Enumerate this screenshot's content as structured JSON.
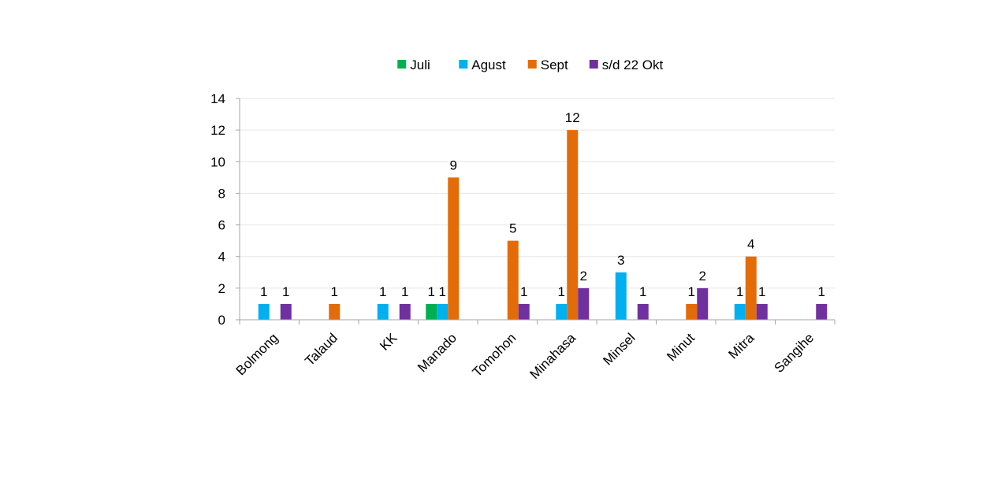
{
  "chart_data": {
    "type": "bar",
    "categories": [
      "Bolmong",
      "Talaud",
      "KK",
      "Manado",
      "Tomohon",
      "Minahasa",
      "Minsel",
      "Minut",
      "Mitra",
      "Sangihe"
    ],
    "series": [
      {
        "name": "Juli",
        "color": "#00b050",
        "values": [
          0,
          0,
          0,
          1,
          0,
          0,
          0,
          0,
          0,
          0
        ]
      },
      {
        "name": "Agust",
        "color": "#00b0f0",
        "values": [
          1,
          0,
          1,
          1,
          0,
          1,
          3,
          0,
          1,
          0
        ]
      },
      {
        "name": "Sept",
        "color": "#e36c09",
        "values": [
          0,
          1,
          0,
          9,
          5,
          12,
          0,
          1,
          4,
          0
        ]
      },
      {
        "name": "s/d 22 Okt",
        "color": "#7030a0",
        "values": [
          1,
          0,
          1,
          0,
          1,
          2,
          1,
          2,
          1,
          1
        ]
      }
    ],
    "ylim": [
      0,
      14
    ],
    "yticks": [
      0,
      2,
      4,
      6,
      8,
      10,
      12,
      14
    ],
    "title": "",
    "xlabel": "",
    "ylabel": "",
    "legend_position": "top",
    "grid": true
  }
}
